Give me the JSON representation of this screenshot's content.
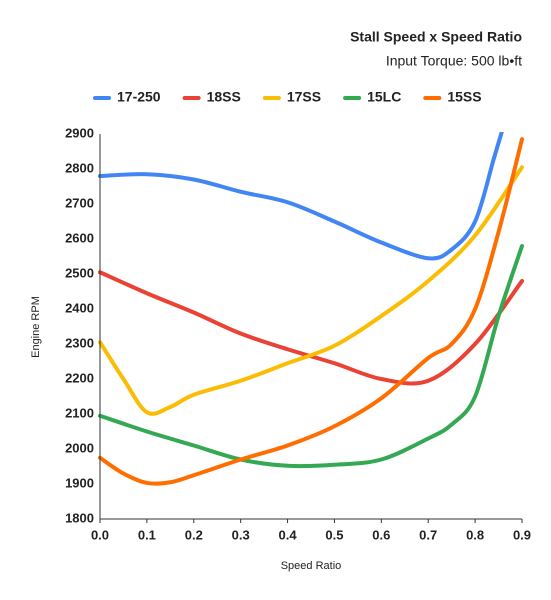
{
  "chart_data": {
    "type": "line",
    "title": "Stall Speed x Speed Ratio",
    "subtitle": "Input Torque: 500 lb•ft",
    "x_label": "Speed Ratio",
    "y_label": "Engine RPM",
    "legend": "top",
    "grid": false,
    "xlim": [
      0,
      0.9
    ],
    "ylim": [
      1800,
      2900
    ],
    "xticks": [
      {
        "value": 0,
        "label": "0.0"
      },
      0.1,
      0.2,
      0.3,
      0.4,
      0.5,
      0.6,
      0.7,
      0.8,
      0.9
    ],
    "yticks": [
      1800,
      1900,
      2000,
      2100,
      2200,
      2300,
      2400,
      2500,
      2600,
      2700,
      2800,
      2900
    ],
    "series": [
      {
        "name": "17-250",
        "color": "#4285f4",
        "x": [
          0,
          0.1,
          0.2,
          0.3,
          0.4,
          0.5,
          0.6,
          0.7,
          0.75,
          0.8,
          0.84,
          0.86
        ],
        "values": [
          2780,
          2785,
          2770,
          2735,
          2705,
          2650,
          2590,
          2545,
          2570,
          2650,
          2830,
          2920
        ]
      },
      {
        "name": "18SS",
        "color": "#ea4335",
        "x": [
          0,
          0.1,
          0.2,
          0.3,
          0.4,
          0.5,
          0.6,
          0.7,
          0.8,
          0.9
        ],
        "values": [
          2505,
          2445,
          2390,
          2330,
          2285,
          2245,
          2200,
          2195,
          2300,
          2480
        ]
      },
      {
        "name": "17SS",
        "color": "#fbbc04",
        "x": [
          0,
          0.05,
          0.1,
          0.15,
          0.2,
          0.3,
          0.4,
          0.5,
          0.6,
          0.7,
          0.8,
          0.9
        ],
        "values": [
          2305,
          2200,
          2105,
          2120,
          2155,
          2195,
          2245,
          2295,
          2380,
          2480,
          2610,
          2805
        ]
      },
      {
        "name": "15LC",
        "color": "#34a853",
        "x": [
          0,
          0.1,
          0.2,
          0.3,
          0.4,
          0.5,
          0.6,
          0.7,
          0.75,
          0.8,
          0.85,
          0.9
        ],
        "values": [
          2095,
          2050,
          2010,
          1970,
          1952,
          1955,
          1970,
          2030,
          2070,
          2150,
          2380,
          2580
        ]
      },
      {
        "name": "15SS",
        "color": "#ff6d01",
        "x": [
          0,
          0.05,
          0.1,
          0.15,
          0.2,
          0.3,
          0.4,
          0.5,
          0.6,
          0.7,
          0.75,
          0.8,
          0.85,
          0.9
        ],
        "values": [
          1975,
          1930,
          1903,
          1905,
          1925,
          1970,
          2010,
          2065,
          2145,
          2260,
          2300,
          2400,
          2620,
          2885
        ]
      }
    ]
  }
}
